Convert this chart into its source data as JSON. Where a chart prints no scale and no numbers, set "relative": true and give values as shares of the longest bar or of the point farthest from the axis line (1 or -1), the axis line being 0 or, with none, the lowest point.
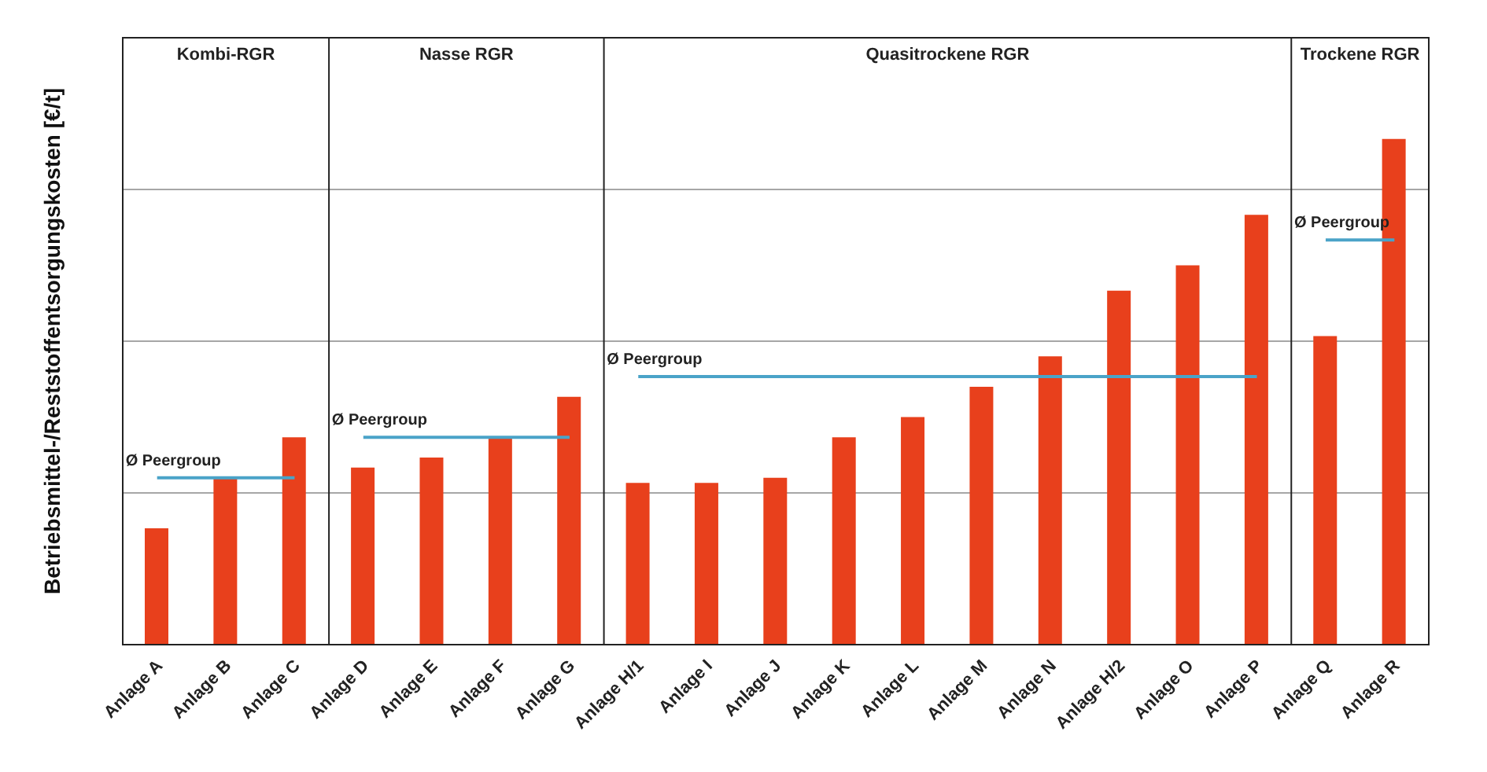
{
  "chart_data": {
    "type": "bar",
    "relative": true,
    "ylabel": "Betriebsmittel-/Reststoffentsorgungskosten [€/t]",
    "categories": [
      "Anlage A",
      "Anlage B",
      "Anlage C",
      "Anlage D",
      "Anlage E",
      "Anlage F",
      "Anlage G",
      "Anlage H/1",
      "Anlage I",
      "Anlage J",
      "Anlage K",
      "Anlage L",
      "Anlage M",
      "Anlage N",
      "Anlage H/2",
      "Anlage O",
      "Anlage P",
      "Anlage Q",
      "Anlage R"
    ],
    "series": [
      {
        "type": "bar",
        "color": "#e8401c",
        "values": [
          0.23,
          0.33,
          0.41,
          0.35,
          0.37,
          0.41,
          0.49,
          0.32,
          0.32,
          0.33,
          0.41,
          0.45,
          0.51,
          0.57,
          0.7,
          0.75,
          0.85,
          0.61,
          1
        ]
      },
      {
        "type": "line",
        "name": "Ø Peergroup",
        "color": "#4aa3c8",
        "values": [
          0.33,
          0.33,
          0.33,
          null,
          null,
          null,
          null,
          null,
          null,
          null,
          null,
          null,
          null,
          null,
          null,
          null,
          null,
          null,
          null
        ]
      },
      {
        "type": "line",
        "name": "Ø Peergroup",
        "color": "#4aa3c8",
        "values": [
          null,
          null,
          null,
          0.41,
          0.41,
          0.41,
          0.41,
          null,
          null,
          null,
          null,
          null,
          null,
          null,
          null,
          null,
          null,
          null,
          null
        ]
      },
      {
        "type": "line",
        "name": "Ø Peergroup",
        "color": "#4aa3c8",
        "values": [
          null,
          null,
          null,
          null,
          null,
          null,
          null,
          0.53,
          0.53,
          0.53,
          0.53,
          0.53,
          0.53,
          0.53,
          0.53,
          0.53,
          0.53,
          null,
          null
        ]
      },
      {
        "type": "line",
        "name": "Ø Peergroup",
        "color": "#4aa3c8",
        "values": [
          null,
          null,
          null,
          null,
          null,
          null,
          null,
          null,
          null,
          null,
          null,
          null,
          null,
          null,
          null,
          null,
          null,
          0.8,
          0.8
        ]
      }
    ],
    "annotations": [
      "Kombi-RGR",
      "Nasse RGR",
      "Quasitrockene RGR",
      "Trockene RGR"
    ],
    "grid": "y",
    "legend": false
  }
}
